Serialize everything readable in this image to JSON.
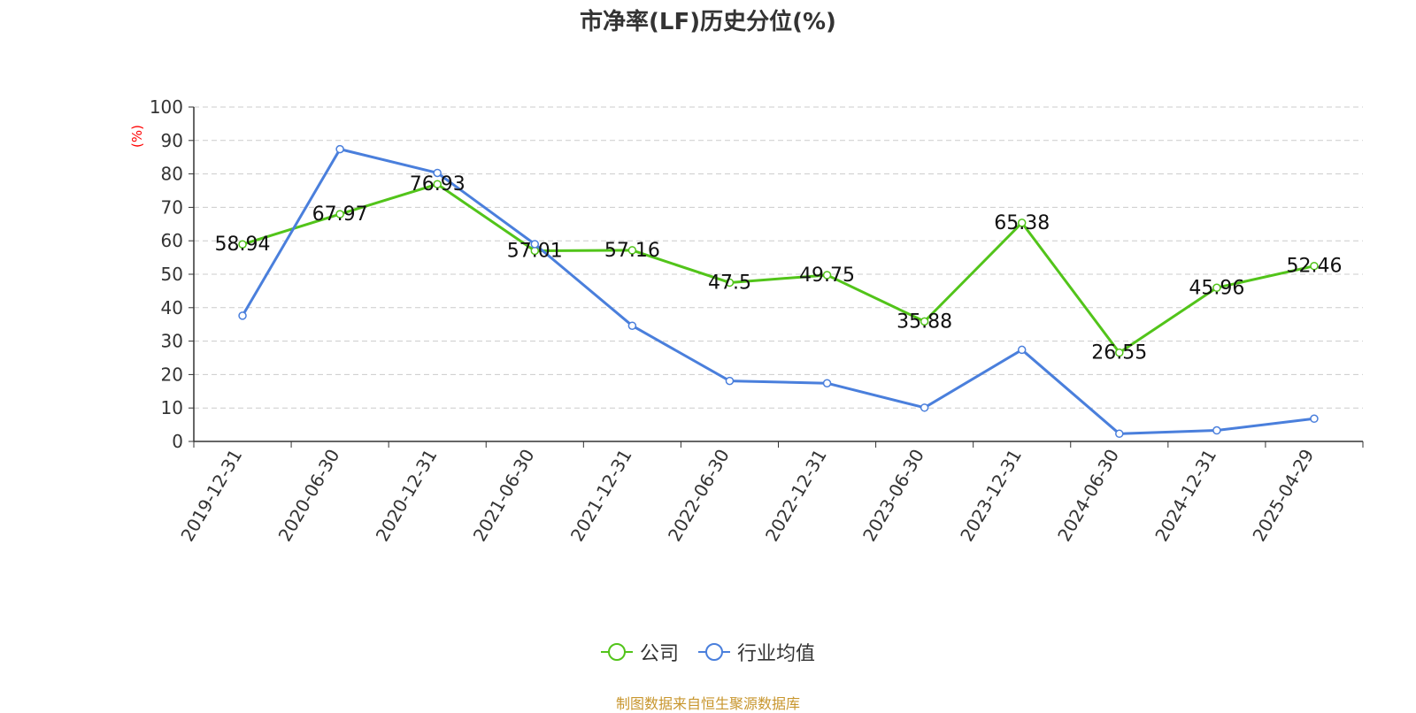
{
  "chart_data": {
    "type": "line",
    "title": "市净率(LF)历史分位(%)",
    "ylabel": "(%)",
    "ylim": [
      0,
      100
    ],
    "yticks": [
      0,
      10,
      20,
      30,
      40,
      50,
      60,
      70,
      80,
      90,
      100
    ],
    "grid": true,
    "legend_position": "bottom",
    "categories": [
      "2019-12-31",
      "2020-06-30",
      "2020-12-31",
      "2021-06-30",
      "2021-12-31",
      "2022-06-30",
      "2022-12-31",
      "2023-06-30",
      "2023-12-31",
      "2024-06-30",
      "2024-12-31",
      "2025-04-29"
    ],
    "series": [
      {
        "name": "公司",
        "color": "#52c41a",
        "values": [
          58.94,
          67.97,
          76.93,
          57.01,
          57.16,
          47.5,
          49.75,
          35.88,
          65.38,
          26.55,
          45.96,
          52.46
        ],
        "labels": [
          "58.94",
          "67.97",
          "76.93",
          "57.01",
          "57.16",
          "47.5",
          "49.75",
          "35.88",
          "65.38",
          "26.55",
          "45.96",
          "52.46"
        ]
      },
      {
        "name": "行业均值",
        "color": "#4a7fdc",
        "values": [
          37.6,
          87.4,
          80.3,
          59.0,
          34.6,
          18.1,
          17.4,
          10.1,
          27.4,
          2.3,
          3.3,
          6.8
        ]
      }
    ]
  },
  "footer": "制图数据来自恒生聚源数据库"
}
